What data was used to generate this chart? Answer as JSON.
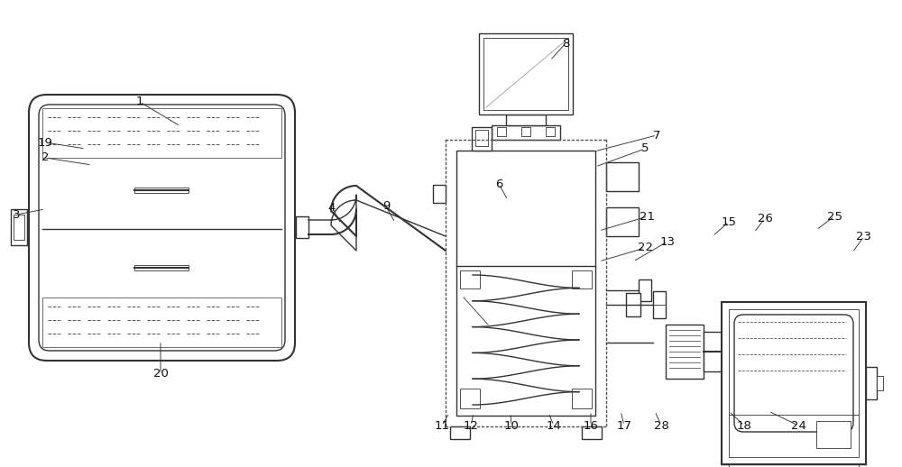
{
  "bg_color": "#ffffff",
  "lc": "#333333",
  "lc2": "#555555",
  "figsize": [
    10.0,
    5.18
  ],
  "dpi": 100,
  "annotations": [
    [
      "1",
      200,
      140,
      155,
      113
    ],
    [
      "19",
      95,
      165,
      50,
      158
    ],
    [
      "2",
      102,
      183,
      50,
      175
    ],
    [
      "3",
      50,
      232,
      18,
      238
    ],
    [
      "20",
      178,
      378,
      178,
      415
    ],
    [
      "4",
      378,
      248,
      368,
      230
    ],
    [
      "9",
      438,
      247,
      428,
      229
    ],
    [
      "11",
      498,
      458,
      490,
      472
    ],
    [
      "12",
      525,
      458,
      522,
      472
    ],
    [
      "10",
      566,
      458,
      567,
      472
    ],
    [
      "14",
      608,
      458,
      614,
      472
    ],
    [
      "5",
      660,
      185,
      715,
      165
    ],
    [
      "6",
      563,
      222,
      553,
      204
    ],
    [
      "7",
      659,
      168,
      728,
      150
    ],
    [
      "8",
      610,
      67,
      627,
      48
    ],
    [
      "21",
      664,
      256,
      718,
      240
    ],
    [
      "22",
      664,
      290,
      715,
      275
    ],
    [
      "13",
      702,
      290,
      740,
      268
    ],
    [
      "15",
      790,
      262,
      808,
      246
    ],
    [
      "26",
      836,
      258,
      848,
      242
    ],
    [
      "25",
      905,
      255,
      925,
      240
    ],
    [
      "23",
      945,
      280,
      958,
      262
    ],
    [
      "16",
      655,
      456,
      655,
      472
    ],
    [
      "17",
      688,
      456,
      692,
      472
    ],
    [
      "28",
      726,
      456,
      733,
      472
    ],
    [
      "18",
      808,
      456,
      825,
      472
    ],
    [
      "24",
      852,
      456,
      885,
      472
    ]
  ]
}
